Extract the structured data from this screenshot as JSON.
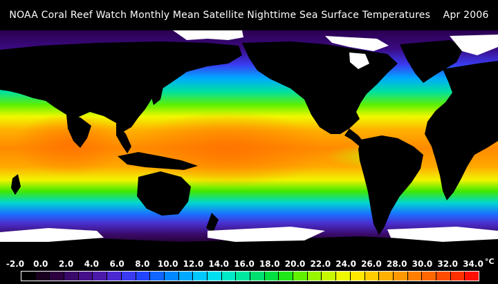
{
  "title": "NOAA Coral Reef Watch Monthly Mean Satellite Nighttime Sea Surface Temperatures    Apr 2006",
  "colorbar": {
    "unit": "°C",
    "tick_labels": [
      "-2.0",
      "0.0",
      "2.0",
      "4.0",
      "6.0",
      "8.0",
      "10.0",
      "12.0",
      "14.0",
      "16.0",
      "18.0",
      "20.0",
      "22.0",
      "24.0",
      "26.0",
      "28.0",
      "30.0",
      "32.0",
      "34.0"
    ],
    "colors": [
      "#000000",
      "#1a0020",
      "#2d0040",
      "#3a0a6a",
      "#46108a",
      "#4c1aa8",
      "#4a2ad0",
      "#3a3af0",
      "#2244ff",
      "#1166ff",
      "#0088ff",
      "#00a8ff",
      "#00c8ff",
      "#00e0f0",
      "#00e8c8",
      "#00e8a0",
      "#00e070",
      "#00e040",
      "#20e818",
      "#60f000",
      "#98f400",
      "#c8f800",
      "#f0f800",
      "#ffe800",
      "#ffcc00",
      "#ffb000",
      "#ff9800",
      "#ff8000",
      "#ff6800",
      "#ff4c00",
      "#ff3000",
      "#ff1000"
    ]
  }
}
